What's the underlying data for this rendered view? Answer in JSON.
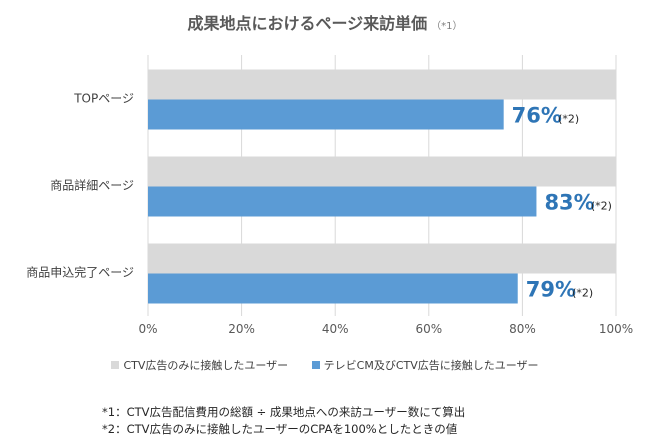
{
  "chart_data": {
    "type": "bar",
    "orientation": "horizontal",
    "title": "成果地点におけるページ来訪単価",
    "title_note": "（*1）",
    "categories": [
      "TOPページ",
      "商品詳細ページ",
      "商品申込完了ページ"
    ],
    "series": [
      {
        "name": "CTV広告のみに接触したユーザー",
        "color": "#d9d9d9",
        "values": [
          100,
          100,
          100
        ]
      },
      {
        "name": "テレビCM及びCTV広告に接触したユーザー",
        "color": "#5b9bd5",
        "values": [
          76,
          83,
          79
        ]
      }
    ],
    "data_labels": [
      "76%",
      "83%",
      "79%"
    ],
    "data_label_note": "(*2)",
    "data_label_color": "#2e75b6",
    "xlim": [
      0,
      100
    ],
    "x_ticks": [
      "0%",
      "20%",
      "40%",
      "60%",
      "80%",
      "100%"
    ],
    "grid": true,
    "legend_position": "bottom"
  },
  "footnotes": [
    "*1：CTV広告配信費用の総額 ÷ 成果地点への来訪ユーザー数にて算出",
    "*2：CTV広告のみに接触したユーザーのCPAを100%としたときの値"
  ]
}
